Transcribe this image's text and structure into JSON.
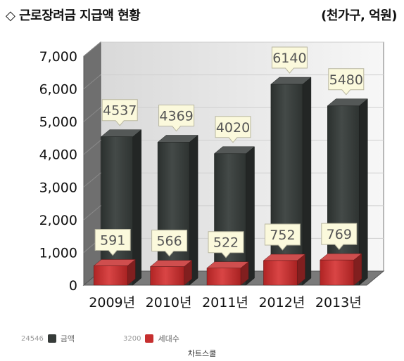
{
  "header": {
    "title": "◇ 근로장려금 지급액 현황",
    "unit": "(천가구, 억원)"
  },
  "chart_data": {
    "type": "bar",
    "categories": [
      "2009년",
      "2010년",
      "2011년",
      "2012년",
      "2013년"
    ],
    "series": [
      {
        "name": "금액",
        "values": [
          4537,
          4369,
          4020,
          6140,
          5480
        ],
        "color": "#363b39"
      },
      {
        "name": "세대수",
        "values": [
          591,
          566,
          522,
          752,
          769
        ],
        "color": "#c62f2f"
      }
    ],
    "yticks": [
      "0",
      "1,000",
      "2,000",
      "3,000",
      "4,000",
      "5,000",
      "6,000",
      "7,000"
    ],
    "ylim": [
      0,
      7000
    ],
    "legend_position": "bottom-left"
  },
  "legend": [
    {
      "count": "24546",
      "label": "금액",
      "color": "#363b39"
    },
    {
      "count": "3200",
      "label": "세대수",
      "color": "#c62f2f"
    }
  ],
  "footer": {
    "text": "차트스쿨"
  }
}
